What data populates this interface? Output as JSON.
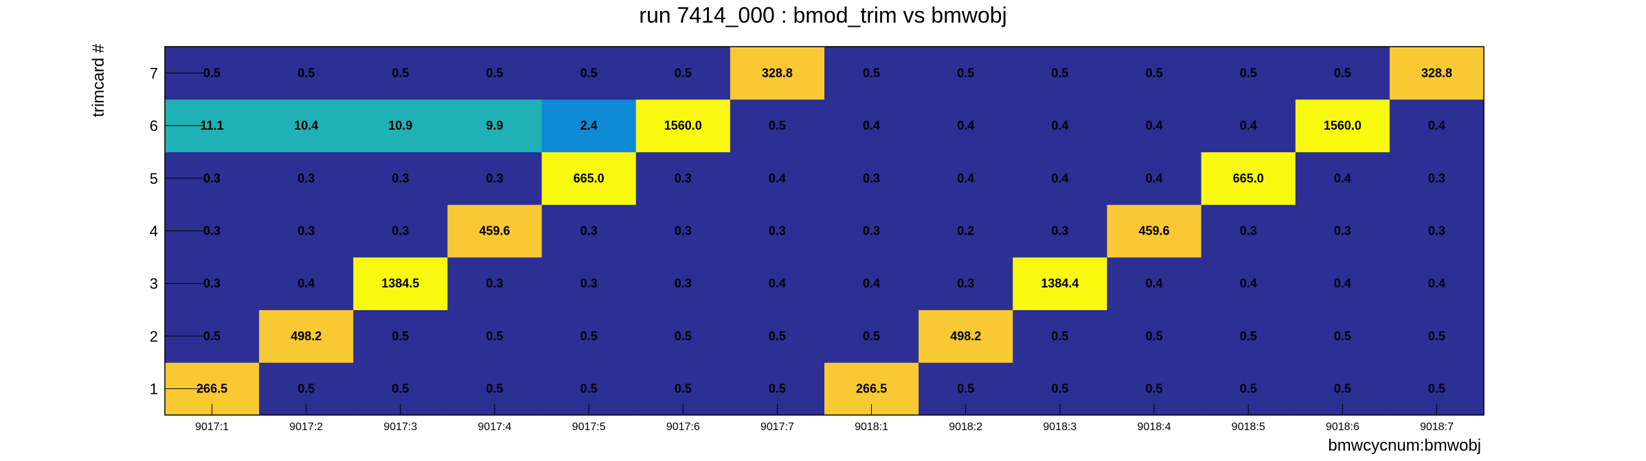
{
  "chart_data": {
    "type": "heatmap",
    "title": "run 7414_000 : bmod_trim vs bmwobj",
    "xlabel": "bmwcycnum:bmwobj",
    "ylabel": "trimcard #",
    "x_categories": [
      "9017:1",
      "9017:2",
      "9017:3",
      "9017:4",
      "9017:5",
      "9017:6",
      "9017:7",
      "9018:1",
      "9018:2",
      "9018:3",
      "9018:4",
      "9018:5",
      "9018:6",
      "9018:7"
    ],
    "y_categories": [
      "1",
      "2",
      "3",
      "4",
      "5",
      "6",
      "7"
    ],
    "values": [
      [
        "266.5",
        "0.5",
        "0.5",
        "0.5",
        "0.5",
        "0.5",
        "0.5",
        "266.5",
        "0.5",
        "0.5",
        "0.5",
        "0.5",
        "0.5",
        "0.5"
      ],
      [
        "0.5",
        "498.2",
        "0.5",
        "0.5",
        "0.5",
        "0.5",
        "0.5",
        "0.5",
        "498.2",
        "0.5",
        "0.5",
        "0.5",
        "0.5",
        "0.5"
      ],
      [
        "0.3",
        "0.4",
        "1384.5",
        "0.3",
        "0.3",
        "0.3",
        "0.4",
        "0.4",
        "0.3",
        "1384.4",
        "0.4",
        "0.4",
        "0.4",
        "0.4"
      ],
      [
        "0.3",
        "0.3",
        "0.3",
        "459.6",
        "0.3",
        "0.3",
        "0.3",
        "0.3",
        "0.2",
        "0.3",
        "459.6",
        "0.3",
        "0.3",
        "0.3"
      ],
      [
        "0.3",
        "0.3",
        "0.3",
        "0.3",
        "665.0",
        "0.3",
        "0.4",
        "0.3",
        "0.4",
        "0.4",
        "0.4",
        "665.0",
        "0.4",
        "0.3"
      ],
      [
        "11.1",
        "10.4",
        "10.9",
        "9.9",
        "2.4",
        "1560.0",
        "0.5",
        "0.4",
        "0.4",
        "0.4",
        "0.4",
        "0.4",
        "1560.0",
        "0.4"
      ],
      [
        "0.5",
        "0.5",
        "0.5",
        "0.5",
        "0.5",
        "0.5",
        "328.8",
        "0.5",
        "0.5",
        "0.5",
        "0.5",
        "0.5",
        "0.5",
        "328.8"
      ]
    ],
    "colorscale": "log",
    "zlim": [
      0.2,
      1560.0
    ],
    "colormap": [
      "#2c2f94",
      "#1b55cf",
      "#0f8ad6",
      "#1fb1b5",
      "#76bf72",
      "#c6bc4f",
      "#f9c934",
      "#f9f90f"
    ],
    "grid": false,
    "legend": false
  }
}
